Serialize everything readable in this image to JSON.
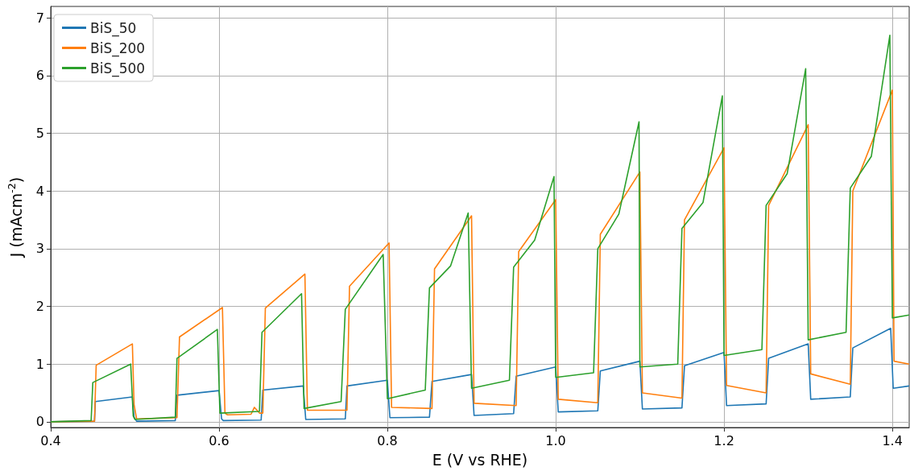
{
  "chart_data": {
    "type": "line",
    "xlabel": "E (V vs RHE)",
    "ylabel": "J (mAcm$^{-2}$)",
    "xlim": [
      0.4,
      1.42
    ],
    "ylim": [
      -0.1,
      7.2
    ],
    "xticks": [
      0.4,
      0.6,
      0.8,
      {
        "value": 1,
        "label": "1.0"
      },
      1.2,
      1.4
    ],
    "yticks": [
      0,
      1,
      2,
      3,
      4,
      5,
      6,
      7
    ],
    "grid": true,
    "legend": "top left",
    "series": [
      {
        "name": "BiS_50",
        "color": "#1f77b4",
        "x": [
          0.4,
          0.452,
          0.453,
          0.497,
          0.499,
          0.502,
          0.548,
          0.55,
          0.6,
          0.603,
          0.605,
          0.65,
          0.652,
          0.7,
          0.703,
          0.75,
          0.752,
          0.8,
          0.803,
          0.85,
          0.853,
          0.9,
          0.903,
          0.95,
          0.953,
          1.0,
          1.003,
          1.05,
          1.053,
          1.1,
          1.103,
          1.15,
          1.153,
          1.2,
          1.203,
          1.25,
          1.253,
          1.3,
          1.303,
          1.35,
          1.353,
          1.398,
          1.401,
          1.42
        ],
        "values": [
          0,
          0.01,
          0.35,
          0.43,
          0.08,
          0.01,
          0.02,
          0.46,
          0.54,
          0.05,
          0.02,
          0.03,
          0.55,
          0.62,
          0.04,
          0.05,
          0.62,
          0.72,
          0.07,
          0.08,
          0.7,
          0.82,
          0.11,
          0.14,
          0.79,
          0.95,
          0.17,
          0.19,
          0.88,
          1.05,
          0.22,
          0.24,
          0.97,
          1.2,
          0.28,
          0.31,
          1.1,
          1.35,
          0.39,
          0.43,
          1.28,
          1.62,
          0.58,
          0.62
        ]
      },
      {
        "name": "BiS_200",
        "color": "#ff7f0e",
        "x": [
          0.4,
          0.452,
          0.454,
          0.497,
          0.499,
          0.502,
          0.55,
          0.553,
          0.604,
          0.607,
          0.61,
          0.638,
          0.642,
          0.648,
          0.652,
          0.655,
          0.702,
          0.705,
          0.752,
          0.755,
          0.802,
          0.805,
          0.853,
          0.856,
          0.9,
          0.903,
          0.953,
          0.956,
          1.0,
          1.003,
          1.05,
          1.053,
          1.1,
          1.103,
          1.15,
          1.153,
          1.2,
          1.203,
          1.25,
          1.253,
          1.3,
          1.303,
          1.35,
          1.353,
          1.4,
          1.402,
          1.42
        ],
        "values": [
          0,
          0.01,
          0.98,
          1.35,
          0.3,
          0.05,
          0.07,
          1.47,
          1.98,
          0.15,
          0.12,
          0.13,
          0.25,
          0.15,
          0.15,
          1.97,
          2.56,
          0.2,
          0.2,
          2.35,
          3.1,
          0.25,
          0.23,
          2.65,
          3.57,
          0.32,
          0.28,
          2.95,
          3.85,
          0.39,
          0.33,
          3.25,
          4.33,
          0.5,
          0.41,
          3.5,
          4.75,
          0.63,
          0.5,
          3.75,
          5.15,
          0.83,
          0.65,
          4.0,
          5.75,
          1.05,
          1.0
        ]
      },
      {
        "name": "BiS_500",
        "color": "#2ca02c",
        "x": [
          0.4,
          0.448,
          0.45,
          0.495,
          0.498,
          0.5,
          0.548,
          0.55,
          0.598,
          0.601,
          0.648,
          0.651,
          0.698,
          0.701,
          0.745,
          0.75,
          0.795,
          0.8,
          0.845,
          0.85,
          0.875,
          0.896,
          0.9,
          0.945,
          0.95,
          0.975,
          0.998,
          1.0,
          1.045,
          1.05,
          1.075,
          1.099,
          1.1,
          1.145,
          1.15,
          1.175,
          1.198,
          1.2,
          1.245,
          1.25,
          1.275,
          1.297,
          1.3,
          1.345,
          1.35,
          1.375,
          1.397,
          1.4,
          1.42
        ],
        "values": [
          0,
          0.02,
          0.68,
          1.0,
          0.1,
          0.04,
          0.08,
          1.1,
          1.6,
          0.15,
          0.18,
          1.55,
          2.22,
          0.23,
          0.35,
          1.95,
          2.9,
          0.4,
          0.55,
          2.32,
          2.7,
          3.62,
          0.58,
          0.72,
          2.68,
          3.15,
          4.25,
          0.77,
          0.85,
          3.0,
          3.6,
          5.2,
          0.95,
          1.0,
          3.35,
          3.8,
          5.65,
          1.15,
          1.25,
          3.75,
          4.3,
          6.12,
          1.42,
          1.55,
          4.05,
          4.6,
          6.7,
          1.8,
          1.85
        ]
      }
    ]
  }
}
